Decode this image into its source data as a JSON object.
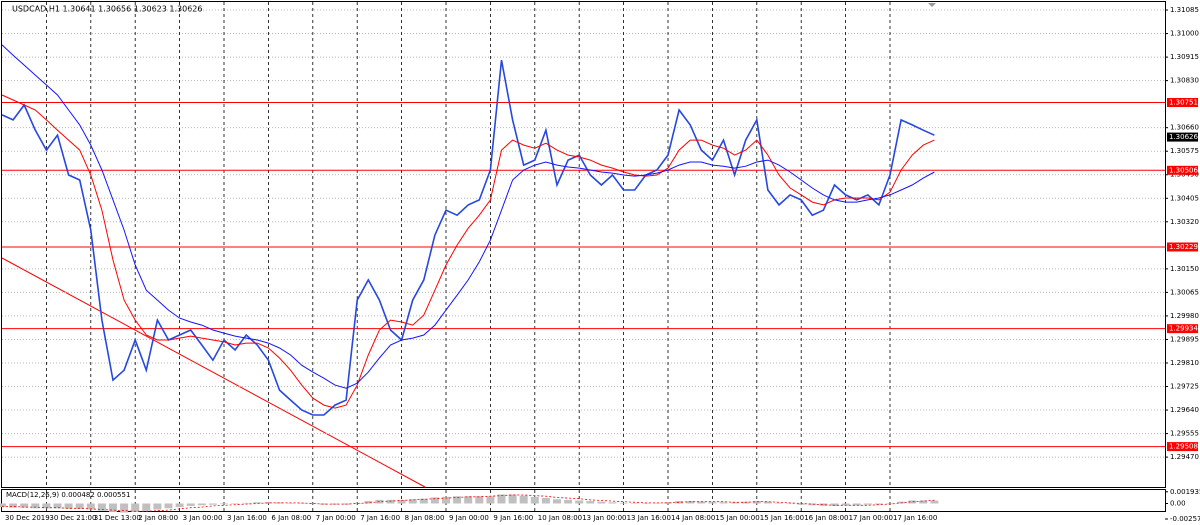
{
  "chart_data": [
    {
      "type": "line",
      "title": "USDCAD,H1  1.30641 1.30656 1.30623 1.30626",
      "categories": [
        "30 Dec 2019",
        null,
        null,
        null,
        "30 Dec 21:00",
        null,
        null,
        null,
        "31 Dec 13:00",
        null,
        null,
        null,
        "2 Jan 08:00",
        null,
        null,
        null,
        "3 Jan 00:00",
        null,
        null,
        null,
        "3 Jan 16:00",
        null,
        null,
        null,
        "6 Jan 08:00",
        null,
        null,
        null,
        "7 Jan 00:00",
        null,
        null,
        null,
        "7 Jan 16:00",
        null,
        null,
        null,
        "8 Jan 08:00",
        null,
        null,
        null,
        "9 Jan 00:00",
        null,
        null,
        null,
        "9 Jan 16:00",
        null,
        null,
        null,
        "10 Jan 08:00",
        null,
        null,
        null,
        "13 Jan 00:00",
        null,
        null,
        null,
        "13 Jan 16:00",
        null,
        null,
        null,
        "14 Jan 08:00",
        null,
        null,
        null,
        "15 Jan 00:00",
        null,
        null,
        null,
        "15 Jan 16:00",
        null,
        null,
        null,
        "16 Jan 08:00",
        null,
        null,
        null,
        "17 Jan 00:00",
        null,
        null,
        null,
        "17 Jan 16:00",
        null,
        null,
        null,
        null
      ],
      "series": [
        {
          "color": "#2648e0",
          "values": [
            1.30706,
            1.30688,
            1.30742,
            1.30651,
            1.30579,
            1.30633,
            1.30489,
            1.30471,
            1.3029,
            1.29965,
            1.29748,
            1.29784,
            1.29893,
            1.29784,
            1.29965,
            1.29893,
            1.29911,
            1.29929,
            1.29875,
            1.2982,
            1.29893,
            1.29857,
            1.29911,
            1.29875,
            1.2982,
            1.29712,
            1.29676,
            1.2964,
            1.29622,
            1.29622,
            1.29658,
            1.29676,
            1.30037,
            1.3011,
            1.30037,
            1.29929,
            1.29893,
            1.30037,
            1.3011,
            1.30272,
            1.30362,
            1.30344,
            1.30381,
            1.30399,
            1.30507,
            1.30904,
            1.30688,
            1.30525,
            1.30543,
            1.30651,
            1.30453,
            1.30543,
            1.30561,
            1.30489,
            1.30453,
            1.30489,
            1.30435,
            1.30435,
            1.30489,
            1.30507,
            1.30561,
            1.30724,
            1.3067,
            1.30579,
            1.30543,
            1.30615,
            1.30489,
            1.30615,
            1.30688,
            1.30435,
            1.30381,
            1.30417,
            1.30399,
            1.30344,
            1.30362,
            1.30453,
            1.30417,
            1.30399,
            1.30417,
            1.30381,
            1.30489,
            1.30688,
            1.3067,
            1.30651,
            1.30633
          ]
        },
        {
          "color": "#ff0000",
          "values": [
            1.30778,
            1.3076,
            1.30742,
            1.30724,
            1.30688,
            1.30651,
            1.30615,
            1.30579,
            1.30489,
            1.30362,
            1.30182,
            1.30037,
            1.29965,
            1.29911,
            1.29893,
            1.29893,
            1.299,
            1.29907,
            1.299,
            1.29893,
            1.29886,
            1.29875,
            1.29882,
            1.29882,
            1.29864,
            1.29828,
            1.29784,
            1.2973,
            1.29683,
            1.29658,
            1.29647,
            1.29658,
            1.2973,
            1.29839,
            1.29929,
            1.29965,
            1.29958,
            1.29947,
            1.29983,
            1.30073,
            1.30164,
            1.30236,
            1.30297,
            1.30344,
            1.30399,
            1.30579,
            1.30615,
            1.30597,
            1.30586,
            1.30604,
            1.30579,
            1.30561,
            1.30554,
            1.30543,
            1.30525,
            1.30514,
            1.305,
            1.30489,
            1.30485,
            1.30489,
            1.30514,
            1.30579,
            1.30615,
            1.30615,
            1.30597,
            1.30586,
            1.30561,
            1.30579,
            1.30615,
            1.30561,
            1.30489,
            1.30442,
            1.30417,
            1.30391,
            1.30381,
            1.30399,
            1.30406,
            1.30406,
            1.30406,
            1.30399,
            1.30427,
            1.30507,
            1.30561,
            1.30597,
            1.30615
          ]
        },
        {
          "color": "#1414ff",
          "values": [
            1.30959,
            1.30922,
            1.30886,
            1.3085,
            1.30814,
            1.30778,
            1.30724,
            1.3067,
            1.30597,
            1.30507,
            1.30399,
            1.3029,
            1.30164,
            1.30073,
            1.30037,
            1.30001,
            1.29972,
            1.29958,
            1.29947,
            1.29929,
            1.29918,
            1.29907,
            1.299,
            1.29893,
            1.29882,
            1.29864,
            1.29839,
            1.29802,
            1.29777,
            1.29755,
            1.2973,
            1.29719,
            1.29737,
            1.29777,
            1.29828,
            1.29875,
            1.29893,
            1.299,
            1.29911,
            1.29947,
            1.30001,
            1.30055,
            1.3011,
            1.30175,
            1.30254,
            1.30362,
            1.30471,
            1.30507,
            1.30525,
            1.30536,
            1.30525,
            1.30518,
            1.30514,
            1.30507,
            1.305,
            1.30496,
            1.30489,
            1.30485,
            1.30489,
            1.30496,
            1.30507,
            1.30525,
            1.30536,
            1.30536,
            1.30525,
            1.30521,
            1.30514,
            1.30521,
            1.30536,
            1.30543,
            1.30525,
            1.305,
            1.30471,
            1.30442,
            1.30417,
            1.30399,
            1.30391,
            1.30391,
            1.30399,
            1.30406,
            1.30417,
            1.30435,
            1.30453,
            1.30478,
            1.305
          ]
        }
      ],
      "levels": [
        1.30751,
        1.30506,
        1.30229,
        1.29934,
        1.29508
      ],
      "level_color": "#ff0000",
      "last_price": 1.30626,
      "ylim": [
        1.29362,
        1.31114
      ],
      "yticks": [
        1.31085,
        {
          "value": 1.31,
          "label": "1.31000"
        },
        1.30915,
        {
          "value": 1.3083,
          "label": "1.30830"
        },
        {
          "value": 1.3066,
          "label": "1.30660"
        },
        1.30575,
        {
          "value": 1.3049,
          "label": "1.30490"
        },
        1.30405,
        {
          "value": 1.3032,
          "label": "1.30320"
        },
        {
          "value": 1.3015,
          "label": "1.30150"
        },
        1.30065,
        {
          "value": 1.2998,
          "label": "1.29980"
        },
        1.29895,
        {
          "value": 1.2981,
          "label": "1.29810"
        },
        1.29725,
        {
          "value": 1.2964,
          "label": "1.29640"
        },
        1.29555,
        {
          "value": 1.2947,
          "label": "1.29470"
        }
      ],
      "grid": true
    },
    {
      "type": "macd",
      "title": "MACD(12,26,9) 0.000482 0.000551",
      "color": "#c0c0c0",
      "signal_color": "#ff0000",
      "values": [
        -0.0006,
        -0.0007,
        -0.0007,
        -0.0008,
        -0.0008,
        -0.0008,
        -0.0009,
        -0.0009,
        -0.001,
        -0.0012,
        -0.0014,
        -0.0015,
        -0.0014,
        -0.0012,
        -0.001,
        -0.0008,
        -0.0006,
        -0.0004,
        -0.0003,
        -0.0002,
        -0.0001,
        0,
        0.0001,
        0.0002,
        0.0002,
        0.0002,
        0.0001,
        0,
        -0.0001,
        -0.0002,
        -0.0002,
        -0.0002,
        0.0001,
        0.0004,
        0.0006,
        0.0006,
        0.0006,
        0.0007,
        0.0008,
        0.001,
        0.0011,
        0.0012,
        0.0012,
        0.0012,
        0.0012,
        0.0015,
        0.0015,
        0.0013,
        0.0011,
        0.0009,
        0.0007,
        0.0006,
        0.0005,
        0.0004,
        0.0003,
        0.0002,
        0.0001,
        0,
        0,
        0.0001,
        0.0002,
        0.0004,
        0.0004,
        0.0003,
        0.0002,
        0.0002,
        0.0002,
        0.0003,
        0.0004,
        0.0003,
        0.0001,
        -0.0001,
        -0.0002,
        -0.0003,
        -0.0004,
        -0.0004,
        -0.0003,
        -0.0003,
        -0.0002,
        -0.0002,
        0,
        0.0003,
        0.0005,
        0.0005,
        0.000482
      ],
      "signal": [
        -0.0005,
        -0.0005,
        -0.0006,
        -0.0006,
        -0.0007,
        -0.0007,
        -0.0008,
        -0.0008,
        -0.0009,
        -0.001,
        -0.0011,
        -0.0012,
        -0.0013,
        -0.0013,
        -0.0012,
        -0.0011,
        -0.0009,
        -0.0007,
        -0.0006,
        -0.0004,
        -0.0003,
        -0.0002,
        -0.0001,
        0,
        0.0001,
        0.0001,
        0.0001,
        0.0001,
        0,
        -0.0001,
        -0.0001,
        -0.0001,
        0,
        0.0001,
        0.0003,
        0.0004,
        0.0005,
        0.0006,
        0.0007,
        0.0008,
        0.0009,
        0.001,
        0.0011,
        0.0011,
        0.0012,
        0.0013,
        0.0014,
        0.0014,
        0.0013,
        0.0012,
        0.001,
        0.0009,
        0.0008,
        0.0006,
        0.0005,
        0.0004,
        0.0003,
        0.0002,
        0.0001,
        0.0001,
        0.0001,
        0.0002,
        0.0003,
        0.0003,
        0.0003,
        0.0003,
        0.0002,
        0.0002,
        0.0003,
        0.0003,
        0.0002,
        0.0001,
        0,
        -0.0001,
        -0.0002,
        -0.0003,
        -0.0003,
        -0.0003,
        -0.0003,
        -0.0002,
        -0.0001,
        0.0001,
        0.0003,
        0.0004,
        0.000551
      ],
      "ylim": [
        -0.00257,
        0.0024
      ],
      "yticks": [
        0.001935,
        {
          "value": 0,
          "label": "0.00"
        },
        -0.00257
      ]
    }
  ]
}
